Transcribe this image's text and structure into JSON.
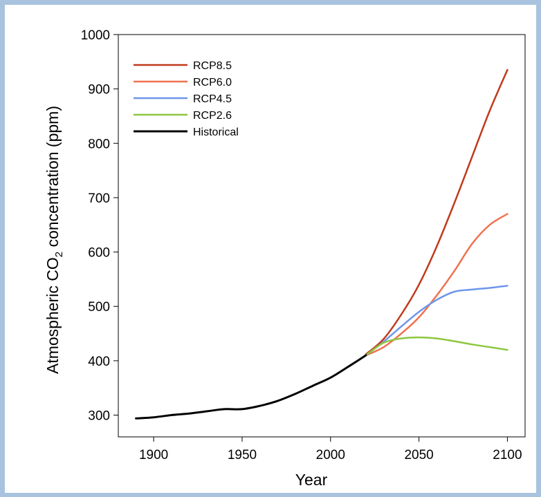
{
  "chart_data": {
    "type": "line",
    "xlabel": "Year",
    "ylabel_main": "Atmospheric CO",
    "ylabel_sub": "2",
    "ylabel_tail": " concentration (ppm)",
    "xlim": [
      1880,
      2110
    ],
    "ylim": [
      260,
      1000
    ],
    "xticks": [
      1900,
      1950,
      2000,
      2050,
      2100
    ],
    "yticks": [
      300,
      400,
      500,
      600,
      700,
      800,
      900,
      1000
    ],
    "grid": false,
    "legend_position": "top-left",
    "series": [
      {
        "name": "RCP8.5",
        "color": "#c0391a",
        "x": [
          2020,
          2030,
          2040,
          2050,
          2060,
          2070,
          2080,
          2090,
          2100
        ],
        "y": [
          412,
          440,
          485,
          540,
          610,
          690,
          775,
          860,
          935
        ]
      },
      {
        "name": "RCP6.0",
        "color": "#f0714e",
        "x": [
          2020,
          2030,
          2040,
          2050,
          2060,
          2070,
          2080,
          2090,
          2100
        ],
        "y": [
          410,
          425,
          450,
          480,
          520,
          565,
          615,
          650,
          670
        ]
      },
      {
        "name": "RCP4.5",
        "color": "#6d96ea",
        "x": [
          2020,
          2030,
          2040,
          2050,
          2060,
          2070,
          2080,
          2090,
          2100
        ],
        "y": [
          410,
          435,
          463,
          490,
          512,
          527,
          531,
          534,
          538
        ]
      },
      {
        "name": "RCP2.6",
        "color": "#8cc63e",
        "x": [
          2020,
          2030,
          2040,
          2050,
          2060,
          2070,
          2080,
          2090,
          2100
        ],
        "y": [
          410,
          433,
          441,
          443,
          441,
          436,
          430,
          425,
          420
        ]
      },
      {
        "name": "Historical",
        "color": "#000000",
        "x": [
          1890,
          1900,
          1910,
          1920,
          1930,
          1940,
          1950,
          1960,
          1970,
          1980,
          1990,
          2000,
          2010,
          2020
        ],
        "y": [
          294,
          296,
          300,
          303,
          307,
          311,
          311,
          317,
          326,
          339,
          354,
          369,
          389,
          410
        ]
      }
    ]
  }
}
